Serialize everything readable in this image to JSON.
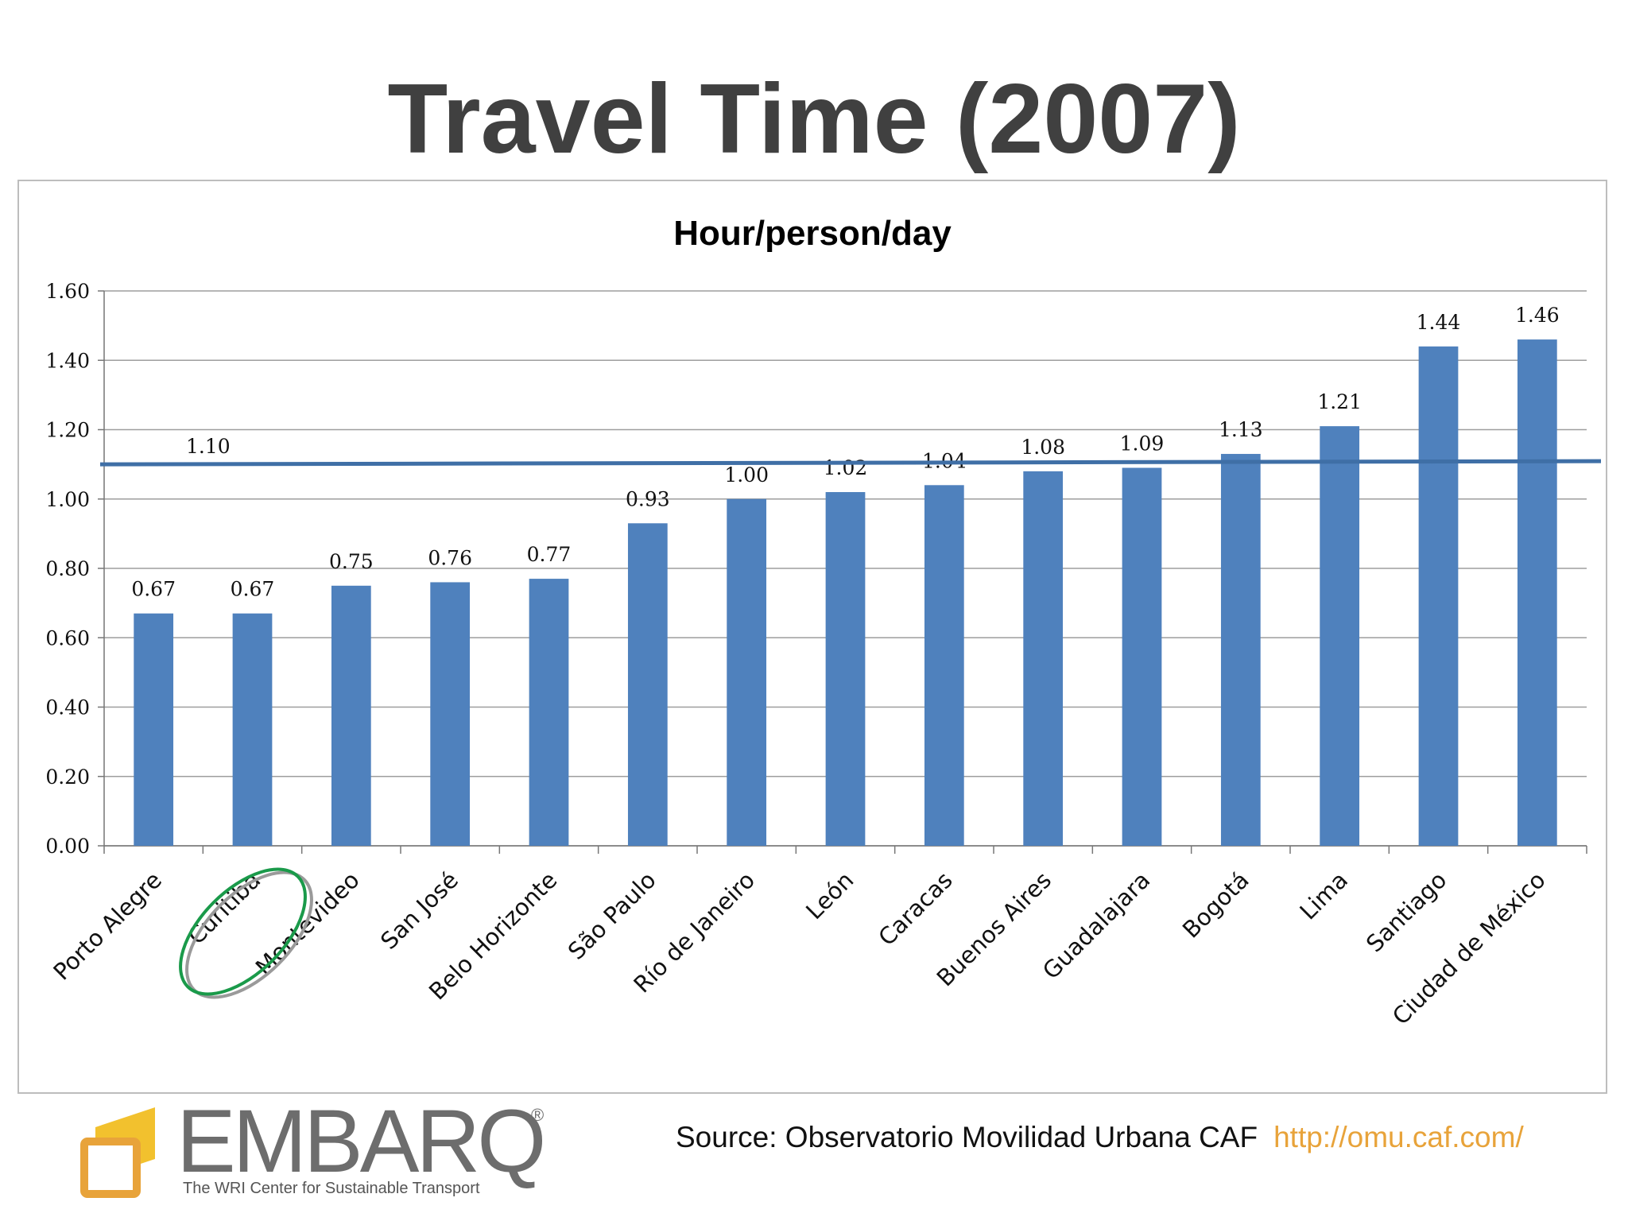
{
  "slide": {
    "title": "Travel Time (2007)",
    "source": "Source: Observatorio Movilidad Urbana CAF",
    "source_link": "http://omu.caf.com/"
  },
  "logo": {
    "wordmark": "EMBARQ",
    "registered": "®",
    "tagline": "The WRI Center for Sustainable Transport"
  },
  "colors": {
    "bar": "#4f81bd",
    "reference_line": "#3f6fa6",
    "highlight_green": "#1a9a4a",
    "highlight_gray": "#9a9a9a",
    "logo_yellow": "#f2c12e"
  },
  "chart_data": {
    "type": "bar",
    "title": "Hour/person/day",
    "categories": [
      "Porto Alegre",
      "Curitiba",
      "Montevideo",
      "San José",
      "Belo Horizonte",
      "São Paulo",
      "Río de Janeiro",
      "León",
      "Caracas",
      "Buenos Aires",
      "Guadalajara",
      "Bogotá",
      "Lima",
      "Santiago",
      "Ciudad de México"
    ],
    "series": [
      {
        "values": [
          0.67,
          0.67,
          0.75,
          0.76,
          0.77,
          0.93,
          1.0,
          1.02,
          1.04,
          1.08,
          1.09,
          1.13,
          1.21,
          1.44,
          1.46
        ]
      }
    ],
    "data_labels": [
      "0.67",
      "0.67",
      "0.75",
      "0.76",
      "0.77",
      "0.93",
      "1.00",
      "1.02",
      "1.04",
      "1.08",
      "1.09",
      "1.13",
      "1.21",
      "1.44",
      "1.46"
    ],
    "reference_line": {
      "value": 1.1,
      "label": "1.10"
    },
    "highlighted_category": "Curitiba",
    "ylim": [
      0,
      1.6
    ],
    "yticks": [
      "0.00",
      "0.20",
      "0.40",
      "0.60",
      "0.80",
      "1.00",
      "1.20",
      "1.40",
      "1.60"
    ],
    "grid": true,
    "legend": "none"
  }
}
